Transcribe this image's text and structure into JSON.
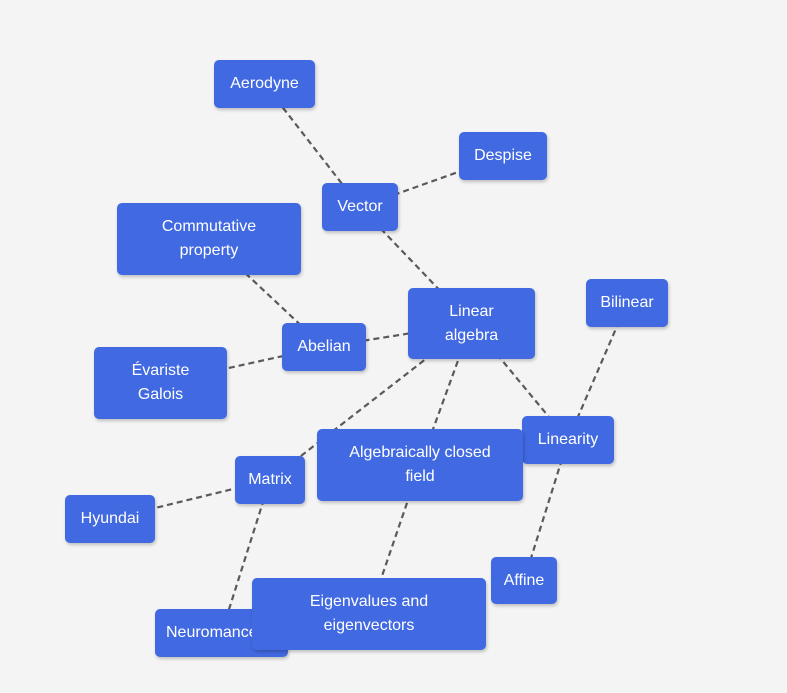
{
  "diagram": {
    "nodes": {
      "aerodyne": "Aerodyne",
      "despise": "Despise",
      "vector": "Vector",
      "commutative": "Commutative\nproperty",
      "bilinear": "Bilinear",
      "linear": "Linear\nalgebra",
      "abelian": "Abelian",
      "galois": "Évariste\nGalois",
      "linearity": "Linearity",
      "algclosed": "Algebraically closed\nfield",
      "matrix": "Matrix",
      "hyundai": "Hyundai",
      "affine": "Affine",
      "neuroman": "Neuromancer",
      "eigen": "Eigenvalues and\neigenvectors"
    },
    "edges": [
      [
        "aerodyne",
        "vector"
      ],
      [
        "despise",
        "vector"
      ],
      [
        "vector",
        "linear"
      ],
      [
        "commutative",
        "abelian"
      ],
      [
        "galois",
        "abelian"
      ],
      [
        "abelian",
        "linear"
      ],
      [
        "linear",
        "matrix"
      ],
      [
        "linear",
        "algclosed"
      ],
      [
        "linear",
        "linearity"
      ],
      [
        "bilinear",
        "linearity"
      ],
      [
        "linearity",
        "affine"
      ],
      [
        "matrix",
        "hyundai"
      ],
      [
        "matrix",
        "neuroman"
      ],
      [
        "algclosed",
        "eigen"
      ]
    ],
    "colors": {
      "node": "#4169e1",
      "node_text": "#ffffff",
      "edge": "#5a5a5a",
      "background": "#f4f4f4"
    }
  }
}
